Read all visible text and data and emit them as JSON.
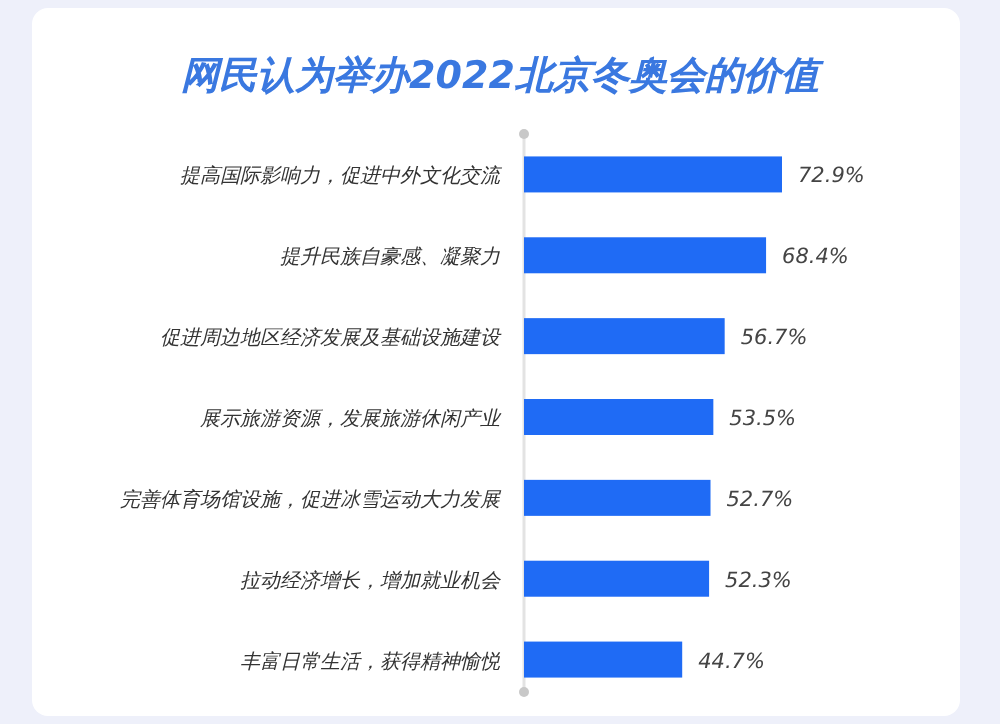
{
  "chart_data": {
    "type": "bar",
    "orientation": "horizontal",
    "title": "网民认为举办2022北京冬奥会的价值",
    "categories": [
      "提高国际影响力，促进中外文化交流",
      "提升民族自豪感、凝聚力",
      "促进周边地区经济发展及基础设施建设",
      "展示旅游资源，发展旅游休闲产业",
      "完善体育场馆设施，促进冰雪运动大力发展",
      "拉动经济增长，增加就业机会",
      "丰富日常生活，获得精神愉悦"
    ],
    "values": [
      72.9,
      68.4,
      56.7,
      53.5,
      52.7,
      52.3,
      44.7
    ],
    "value_labels": [
      "72.9%",
      "68.4%",
      "56.7%",
      "53.5%",
      "52.7%",
      "52.3%",
      "44.7%"
    ],
    "color": "#1f6bf5"
  }
}
